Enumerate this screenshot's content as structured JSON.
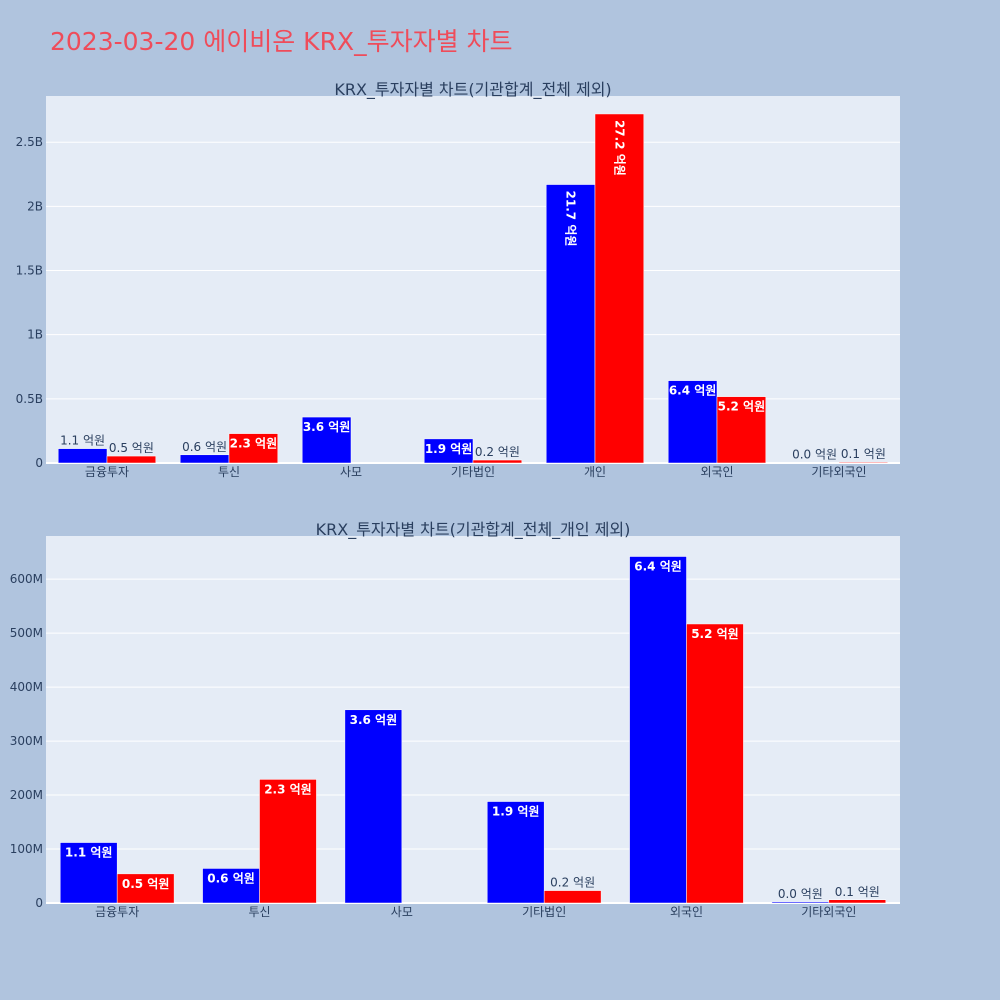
{
  "page": {
    "title": "2023-03-20 에이비온 KRX_투자자별 차트"
  },
  "colors": {
    "buy": "#0000ff",
    "sell": "#ff0000",
    "plot_bg": "#e5ecf6",
    "page_bg": "#b0c4de",
    "title": "#ef4c5a"
  },
  "chart_data": [
    {
      "type": "bar",
      "title": "KRX_투자자별 차트(기관합계_전체 제외)",
      "categories": [
        "금융투자",
        "투신",
        "사모",
        "기타법인",
        "개인",
        "외국인",
        "기타외국인"
      ],
      "series": [
        {
          "values": [
            112000000,
            64000000,
            358000000,
            188000000,
            2170000000,
            642000000,
            2000000
          ],
          "labels": [
            "1.1 억원",
            "0.6 억원",
            "3.6 억원",
            "1.9 억원",
            "21.7 억원",
            "6.4 억원",
            "0.0 억원"
          ]
        },
        {
          "values": [
            54000000,
            229000000,
            0,
            23000000,
            2720000000,
            517000000,
            6000000
          ],
          "labels": [
            "0.5 억원",
            "2.3 억원",
            "",
            "0.2 억원",
            "27.2 억원",
            "5.2 억원",
            "0.1 억원"
          ]
        }
      ],
      "ylim": [
        0,
        2860000000
      ],
      "yticks": [
        0,
        500000000,
        1000000000,
        1500000000,
        2000000000,
        2500000000
      ],
      "ytick_labels": [
        "0",
        "0.5B",
        "1B",
        "1.5B",
        "2B",
        "2.5B"
      ],
      "grid": true,
      "barmode": "group"
    },
    {
      "type": "bar",
      "title": "KRX_투자자별 차트(기관합계_전체_개인 제외)",
      "categories": [
        "금융투자",
        "투신",
        "사모",
        "기타법인",
        "외국인",
        "기타외국인"
      ],
      "series": [
        {
          "values": [
            112000000,
            64000000,
            358000000,
            188000000,
            642000000,
            2000000
          ],
          "labels": [
            "1.1 억원",
            "0.6 억원",
            "3.6 억원",
            "1.9 억원",
            "6.4 억원",
            "0.0 억원"
          ]
        },
        {
          "values": [
            54000000,
            229000000,
            0,
            23000000,
            517000000,
            6000000
          ],
          "labels": [
            "0.5 억원",
            "2.3 억원",
            "",
            "0.2 억원",
            "5.2 억원",
            "0.1 억원"
          ]
        }
      ],
      "ylim": [
        0,
        680000000
      ],
      "yticks": [
        0,
        100000000,
        200000000,
        300000000,
        400000000,
        500000000,
        600000000
      ],
      "ytick_labels": [
        "0",
        "100M",
        "200M",
        "300M",
        "400M",
        "500M",
        "600M"
      ],
      "grid": true,
      "barmode": "group"
    }
  ]
}
